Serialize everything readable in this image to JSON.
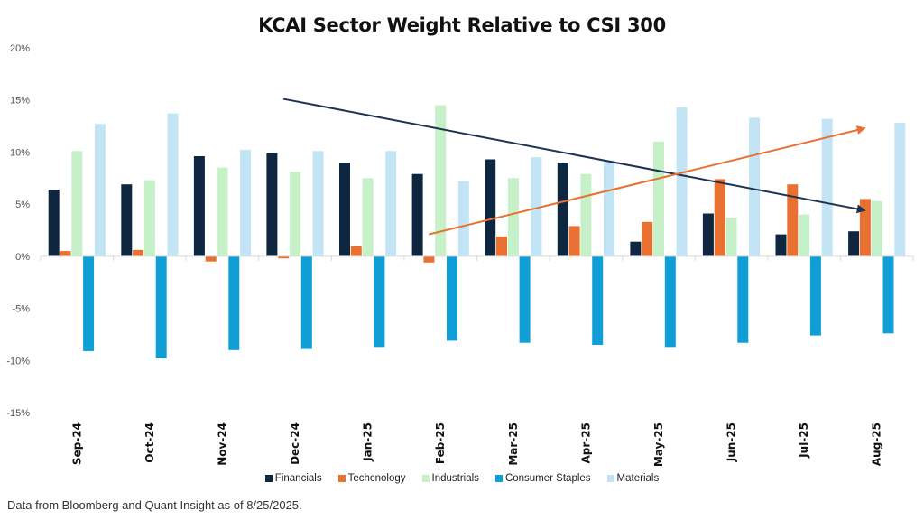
{
  "chart_data": {
    "type": "bar",
    "title": "KCAI Sector Weight Relative to CSI 300",
    "xlabel": "",
    "ylabel": "",
    "ylim": [
      -15,
      20
    ],
    "yticks": [
      20,
      15,
      10,
      5,
      0,
      -5,
      -10,
      -15
    ],
    "ytick_labels": [
      "20%",
      "15%",
      "10%",
      "5%",
      "0%",
      "-5%",
      "-10%",
      "-15%"
    ],
    "categories": [
      "Sep-24",
      "Oct-24",
      "Nov-24",
      "Dec-24",
      "Jan-25",
      "Feb-25",
      "Mar-25",
      "Apr-25",
      "May-25",
      "Jun-25",
      "Jul-25",
      "Aug-25"
    ],
    "series": [
      {
        "name": "Financials",
        "color": "#0f2640",
        "values": [
          6.4,
          6.9,
          9.6,
          9.9,
          9.0,
          7.9,
          9.3,
          9.0,
          1.4,
          4.1,
          2.1,
          2.4
        ]
      },
      {
        "name": "Techcnology",
        "color": "#e87132",
        "values": [
          0.5,
          0.6,
          -0.5,
          -0.2,
          1.0,
          -0.6,
          1.9,
          2.9,
          3.3,
          7.4,
          6.9,
          5.5
        ]
      },
      {
        "name": "Industrials",
        "color": "#c5f0c8",
        "values": [
          10.1,
          7.3,
          8.5,
          8.1,
          7.5,
          14.5,
          7.5,
          7.9,
          11.0,
          3.7,
          4.0,
          5.3
        ]
      },
      {
        "name": "Consumer Staples",
        "color": "#0f9fd6",
        "values": [
          -9.1,
          -9.8,
          -9.0,
          -8.9,
          -8.7,
          -8.1,
          -8.3,
          -8.5,
          -8.7,
          -8.3,
          -7.6,
          -7.4
        ]
      },
      {
        "name": "Materials",
        "color": "#c3e4f5",
        "values": [
          12.7,
          13.7,
          10.2,
          10.1,
          10.1,
          7.2,
          9.5,
          9.2,
          14.3,
          13.3,
          13.2,
          12.8
        ]
      }
    ],
    "annotations": [
      {
        "type": "arrow",
        "name": "financials-trend-arrow",
        "color": "#1c3350",
        "from": {
          "category": "Dec-24",
          "value": 15.1
        },
        "to": {
          "category": "Aug-25",
          "value": 4.4
        }
      },
      {
        "type": "arrow",
        "name": "technology-trend-arrow",
        "color": "#e87132",
        "from": {
          "category": "Feb-25",
          "value": 2.1
        },
        "to": {
          "category": "Aug-25",
          "value": 12.3
        }
      }
    ],
    "grid": false,
    "legend": "bottom-center"
  },
  "footnote": "Data from Bloomberg and Quant Insight as of 8/25/2025."
}
